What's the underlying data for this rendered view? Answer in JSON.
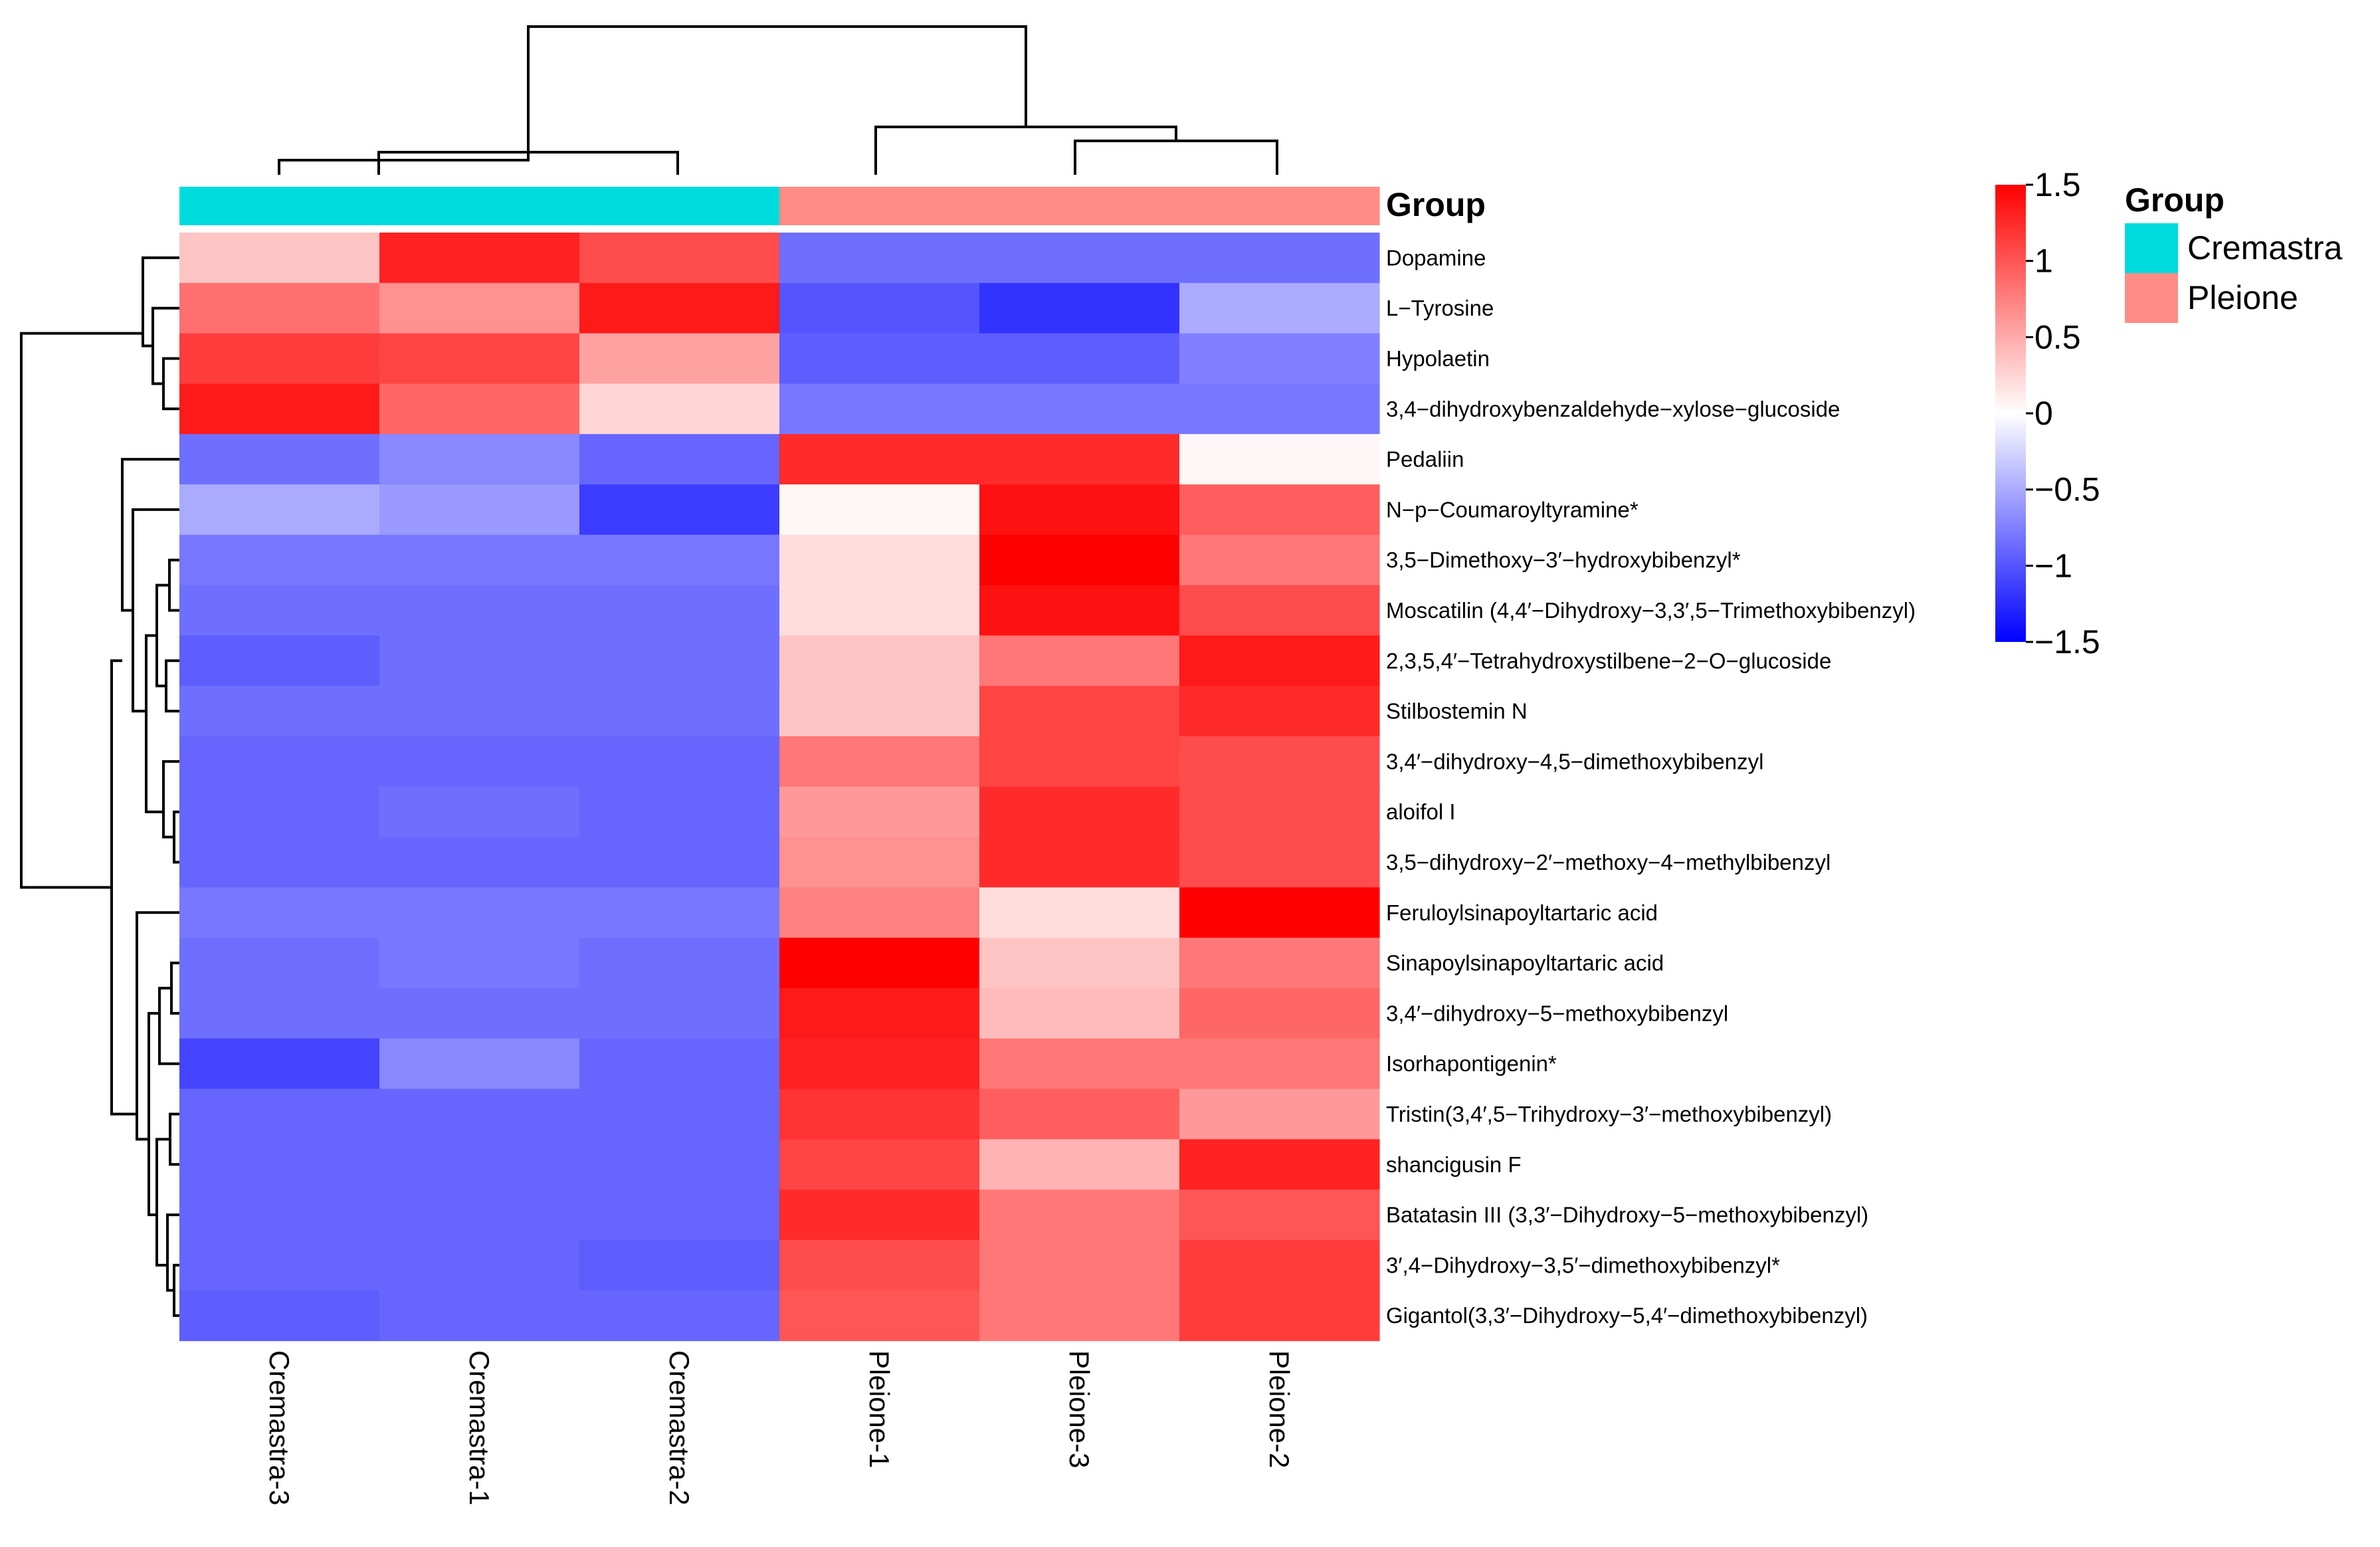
{
  "chart_data": {
    "type": "heatmap",
    "title": "",
    "columns": [
      "Cremastra-3",
      "Cremastra-1",
      "Cremastra-2",
      "Pleione-1",
      "Pleione-3",
      "Pleione-2"
    ],
    "column_groups": [
      "Cremastra",
      "Cremastra",
      "Cremastra",
      "Pleione",
      "Pleione",
      "Pleione"
    ],
    "rows": [
      "Dopamine",
      "L−Tyrosine",
      "Hypolaetin",
      "3,4−dihydroxybenzaldehyde−xylose−glucoside",
      "Pedaliin",
      "N−p−Coumaroyltyramine*",
      "3,5−Dimethoxy−3′−hydroxybibenzyl*",
      "Moscatilin (4,4′−Dihydroxy−3,3′,5−Trimethoxybibenzyl)",
      "2,3,5,4′−Tetrahydroxystilbene−2−O−glucoside",
      "Stilbostemin N",
      "3,4′−dihydroxy−4,5−dimethoxybibenzyl",
      "aloifol I",
      "3,5−dihydroxy−2′−methoxy−4−methylbibenzyl",
      "Feruloylsinapoyltartaric acid",
      "Sinapoylsinapoyltartaric acid",
      "3,4′−dihydroxy−5−methoxybibenzyl",
      "Isorhapontigenin*",
      "Tristin(3,4′,5−Trihydroxy−3′−methoxybibenzyl)",
      "shancigusin F",
      "Batatasin III (3,3′−Dihydroxy−5−methoxybibenzyl)",
      "3′,4−Dihydroxy−3,5′−dimethoxybibenzyl*",
      "Gigantol(3,3′−Dihydroxy−5,4′−dimethoxybibenzyl)"
    ],
    "values": [
      [
        0.35,
        1.3,
        1.05,
        -0.85,
        -0.85,
        -0.85
      ],
      [
        0.85,
        0.65,
        1.35,
        -1.0,
        -1.2,
        -0.5
      ],
      [
        1.15,
        1.1,
        0.55,
        -0.95,
        -0.95,
        -0.75
      ],
      [
        1.35,
        0.9,
        0.25,
        -0.8,
        -0.8,
        -0.8
      ],
      [
        -0.85,
        -0.7,
        -0.9,
        1.25,
        1.25,
        0.05
      ],
      [
        -0.5,
        -0.6,
        -1.15,
        0.05,
        1.4,
        0.95
      ],
      [
        -0.8,
        -0.8,
        -0.8,
        0.2,
        1.5,
        0.8
      ],
      [
        -0.85,
        -0.85,
        -0.85,
        0.2,
        1.4,
        1.05
      ],
      [
        -0.95,
        -0.85,
        -0.85,
        0.35,
        0.8,
        1.35
      ],
      [
        -0.85,
        -0.85,
        -0.85,
        0.35,
        1.1,
        1.25
      ],
      [
        -0.9,
        -0.9,
        -0.9,
        0.8,
        1.1,
        1.05
      ],
      [
        -0.9,
        -0.85,
        -0.9,
        0.6,
        1.25,
        1.05
      ],
      [
        -0.9,
        -0.9,
        -0.9,
        0.65,
        1.25,
        1.05
      ],
      [
        -0.8,
        -0.8,
        -0.8,
        0.75,
        0.2,
        1.5
      ],
      [
        -0.85,
        -0.8,
        -0.85,
        1.5,
        0.35,
        0.8
      ],
      [
        -0.85,
        -0.85,
        -0.85,
        1.35,
        0.4,
        0.9
      ],
      [
        -1.1,
        -0.7,
        -0.9,
        1.3,
        0.8,
        0.8
      ],
      [
        -0.9,
        -0.9,
        -0.9,
        1.2,
        0.95,
        0.6
      ],
      [
        -0.9,
        -0.9,
        -0.9,
        1.1,
        0.45,
        1.3
      ],
      [
        -0.9,
        -0.9,
        -0.9,
        1.25,
        0.8,
        1.0
      ],
      [
        -0.9,
        -0.9,
        -0.95,
        1.05,
        0.8,
        1.15
      ],
      [
        -0.95,
        -0.9,
        -0.9,
        1.0,
        0.8,
        1.15
      ]
    ],
    "scale": {
      "min": -1.5,
      "max": 1.5,
      "ticks": [
        1.5,
        1,
        0.5,
        0,
        -0.5,
        -1,
        -1.5
      ],
      "tick_labels": [
        "1.5",
        "1",
        "0.5",
        "0",
        "−0.5",
        "−1",
        "−1.5"
      ]
    },
    "legend": {
      "title": "Group",
      "entries": [
        {
          "label": "Cremastra",
          "color": "#00dcdd"
        },
        {
          "label": "Pleione",
          "color": "#ff8c84"
        }
      ]
    },
    "annotation_label": "Group",
    "colors": {
      "low": "#0000ff",
      "mid": "#ffffff",
      "high": "#ff0000"
    }
  }
}
